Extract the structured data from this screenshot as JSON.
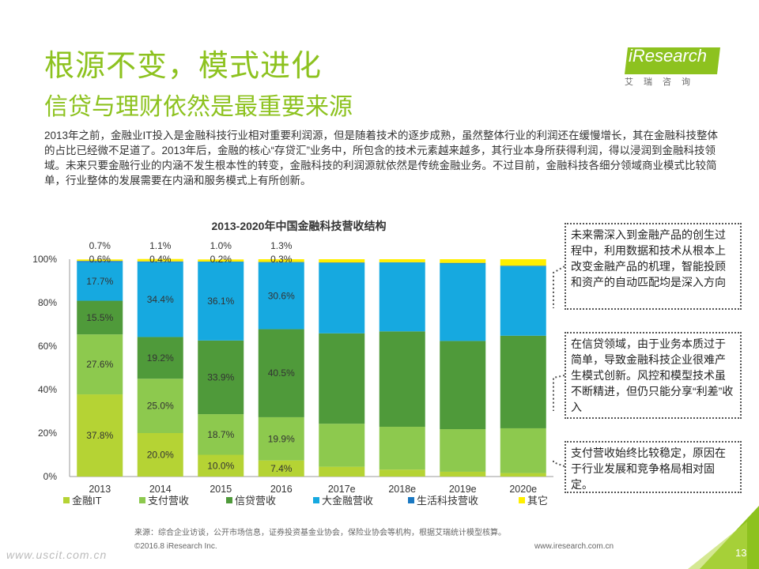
{
  "header": {
    "title": "根源不变，模式进化",
    "subtitle": "信贷与理财依然是最重要来源",
    "intro": "2013年之前，金融业IT投入是金融科技行业相对重要利润源，但是随着技术的逐步成熟，虽然整体行业的利润还在缓慢增长，其在金融科技整体的占比已经微不足道了。2013年后，金融的核心“存贷汇”业务中，所包含的技术元素越来越多，其行业本身所获得利润，得以浸润到金融科技领域。未来只要金融行业的内涵不发生根本性的转变，金融科技的利润源就依然是传统金融业务。不过目前，金融科技各细分领域商业模式比较简单，行业整体的发展需要在内涵和服务模式上有所创新。"
  },
  "logo": {
    "name": "iResearch",
    "cn": "艾瑞咨询"
  },
  "colors": {
    "accent": "#8dc21f",
    "logo_bg": "#8dc21f"
  },
  "chart_data": {
    "type": "bar",
    "stacked": true,
    "title": "2013-2020年中国金融科技营收结构",
    "categories": [
      "2013",
      "2014",
      "2015",
      "2016",
      "2017e",
      "2018e",
      "2019e",
      "2020e"
    ],
    "ylim": [
      0,
      100
    ],
    "yticks": [
      "0%",
      "20%",
      "40%",
      "60%",
      "80%",
      "100%"
    ],
    "legend_position": "bottom",
    "series": [
      {
        "name": "金融IT",
        "color": "#b5d334",
        "values": [
          37.8,
          20.0,
          10.0,
          7.4,
          4.5,
          3.2,
          2.2,
          1.6
        ]
      },
      {
        "name": "支付营收",
        "color": "#8dc94e",
        "values": [
          27.6,
          25.0,
          18.7,
          19.9,
          19.8,
          19.7,
          19.6,
          20.6
        ]
      },
      {
        "name": "信贷营收",
        "color": "#4f9a3a",
        "values": [
          15.5,
          19.2,
          33.9,
          40.5,
          41.6,
          43.9,
          40.6,
          42.6
        ]
      },
      {
        "name": "大金融营收",
        "color": "#16a9e0",
        "values": [
          17.7,
          34.4,
          36.1,
          30.6,
          32.3,
          31.6,
          35.6,
          31.9
        ]
      },
      {
        "name": "生活科技营收",
        "color": "#1a78c2",
        "values": [
          0.6,
          0.4,
          0.2,
          0.3,
          0.3,
          0.2,
          0.3,
          0.3
        ]
      },
      {
        "name": "其它",
        "color": "#ffef00",
        "values": [
          0.7,
          1.1,
          1.0,
          1.3,
          1.5,
          1.4,
          1.7,
          3.0
        ]
      }
    ],
    "data_labels": [
      {
        "category": 0,
        "series": 0,
        "text": "37.8%"
      },
      {
        "category": 0,
        "series": 1,
        "text": "27.6%"
      },
      {
        "category": 0,
        "series": 2,
        "text": "15.5%"
      },
      {
        "category": 0,
        "series": 3,
        "text": "17.7%"
      },
      {
        "category": 0,
        "series": 4,
        "text": "0.6%"
      },
      {
        "category": 0,
        "series": 5,
        "text": "0.7%"
      },
      {
        "category": 1,
        "series": 0,
        "text": "20.0%"
      },
      {
        "category": 1,
        "series": 1,
        "text": "25.0%"
      },
      {
        "category": 1,
        "series": 2,
        "text": "19.2%"
      },
      {
        "category": 1,
        "series": 3,
        "text": "34.4%"
      },
      {
        "category": 1,
        "series": 4,
        "text": "0.4%"
      },
      {
        "category": 1,
        "series": 5,
        "text": "1.1%"
      },
      {
        "category": 2,
        "series": 0,
        "text": "10.0%"
      },
      {
        "category": 2,
        "series": 1,
        "text": "18.7%"
      },
      {
        "category": 2,
        "series": 2,
        "text": "33.9%"
      },
      {
        "category": 2,
        "series": 3,
        "text": "36.1%"
      },
      {
        "category": 2,
        "series": 4,
        "text": "0.2%"
      },
      {
        "category": 2,
        "series": 5,
        "text": "1.0%"
      },
      {
        "category": 3,
        "series": 0,
        "text": "7.4%"
      },
      {
        "category": 3,
        "series": 1,
        "text": "19.9%"
      },
      {
        "category": 3,
        "series": 2,
        "text": "40.5%"
      },
      {
        "category": 3,
        "series": 3,
        "text": "30.6%"
      },
      {
        "category": 3,
        "series": 4,
        "text": "0.3%"
      },
      {
        "category": 3,
        "series": 5,
        "text": "1.3%"
      }
    ]
  },
  "notes": [
    "未来需深入到金融产品的创生过程中，利用数据和技术从根本上改变金融产品的机理，智能投顾和资产的自动匹配均是深入方向",
    "在信贷领域，由于业务本质过于简单，导致金融科技企业很难产生模式创新。风控和模型技术虽不断精进，但仍只能分享“利差”收入",
    "支付营收始终比较稳定，原因在于行业发展和竞争格局相对固定。"
  ],
  "footer": {
    "source": "来源：综合企业访谈，公开市场信息，证券投资基金业协会，保险业协会等机构，根据艾瑞统计模型核算。",
    "copyright": "©2016.8 iResearch Inc.",
    "website": "www.iresearch.com.cn",
    "watermark": "www.uscit.com.cn",
    "page_number": "13"
  }
}
